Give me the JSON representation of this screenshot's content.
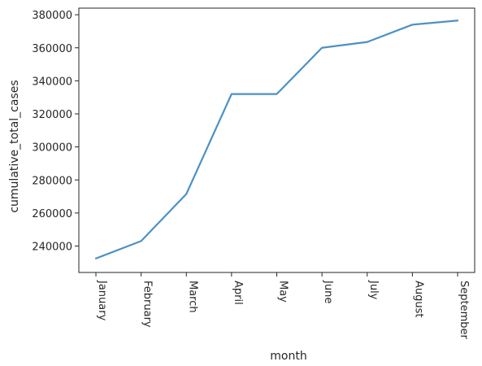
{
  "chart_data": {
    "type": "line",
    "title": "",
    "xlabel": "month",
    "ylabel": "cumulative_total_cases",
    "categories": [
      "January",
      "February",
      "March",
      "April",
      "May",
      "June",
      "July",
      "August",
      "September"
    ],
    "series": [
      {
        "values": [
          232500,
          243000,
          271500,
          332000,
          332000,
          360000,
          363500,
          374000,
          376500
        ]
      }
    ],
    "ylim": [
      224000,
      384000
    ],
    "yticks": [
      240000,
      260000,
      280000,
      300000,
      320000,
      340000,
      360000,
      380000
    ],
    "grid": false,
    "line_color": "#4c91c5",
    "axis_color": "#262626"
  }
}
